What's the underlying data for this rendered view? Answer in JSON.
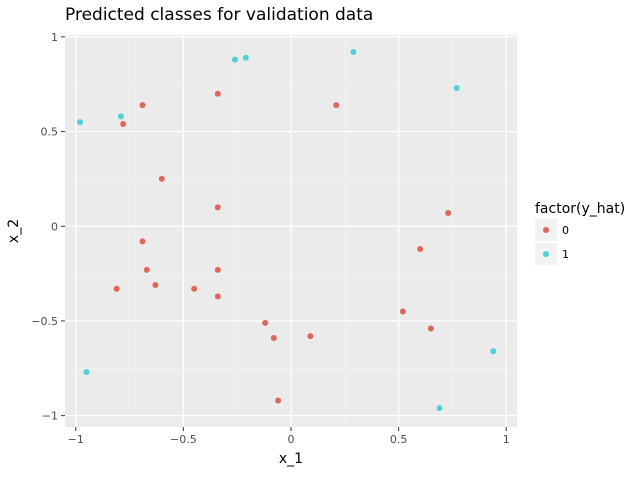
{
  "chart_data": {
    "type": "scatter",
    "title": "Predicted classes for validation data",
    "xlabel": "x_1",
    "ylabel": "x_2",
    "xlim": [
      -1.05,
      1.05
    ],
    "ylim": [
      -1.06,
      1.01
    ],
    "x_ticks": [
      -1,
      -0.5,
      0,
      0.5,
      1
    ],
    "x_tick_labels": [
      "−1",
      "−0.5",
      "0",
      "0.5",
      "1"
    ],
    "y_ticks": [
      -1,
      -0.5,
      0,
      0.5,
      1
    ],
    "y_tick_labels": [
      "−1",
      "−0.5",
      "0",
      "0.5",
      "1"
    ],
    "grid": true,
    "legend_position": "right",
    "legend": {
      "title": "factor(y_hat)",
      "entries": [
        {
          "label": "0",
          "color": "#E0665C"
        },
        {
          "label": "1",
          "color": "#4FCFD8"
        }
      ]
    },
    "series": [
      {
        "name": "0",
        "color": "#E0665C",
        "points": [
          [
            -0.78,
            0.54
          ],
          [
            -0.69,
            0.64
          ],
          [
            -0.34,
            0.7
          ],
          [
            0.21,
            0.64
          ],
          [
            -0.6,
            0.25
          ],
          [
            -0.34,
            0.1
          ],
          [
            0.73,
            0.07
          ],
          [
            -0.69,
            -0.08
          ],
          [
            0.6,
            -0.12
          ],
          [
            -0.67,
            -0.23
          ],
          [
            -0.34,
            -0.23
          ],
          [
            -0.81,
            -0.33
          ],
          [
            -0.63,
            -0.31
          ],
          [
            -0.45,
            -0.33
          ],
          [
            -0.34,
            -0.37
          ],
          [
            0.52,
            -0.45
          ],
          [
            -0.12,
            -0.51
          ],
          [
            0.65,
            -0.54
          ],
          [
            -0.08,
            -0.59
          ],
          [
            0.09,
            -0.58
          ],
          [
            -0.06,
            -0.92
          ]
        ]
      },
      {
        "name": "1",
        "color": "#4FCFD8",
        "points": [
          [
            -0.98,
            0.55
          ],
          [
            -0.79,
            0.58
          ],
          [
            -0.26,
            0.88
          ],
          [
            -0.21,
            0.89
          ],
          [
            0.29,
            0.92
          ],
          [
            0.77,
            0.73
          ],
          [
            -0.95,
            -0.77
          ],
          [
            0.69,
            -0.96
          ],
          [
            0.94,
            -0.66
          ]
        ]
      }
    ]
  }
}
